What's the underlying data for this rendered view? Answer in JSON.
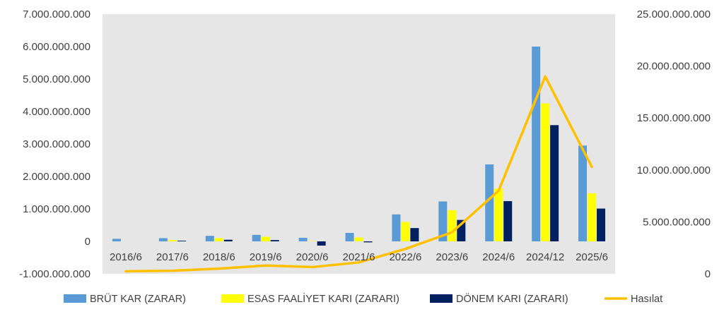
{
  "chart_data": {
    "type": "bar",
    "categories": [
      "2016/6",
      "2017/6",
      "2018/6",
      "2019/6",
      "2020/6",
      "2021/6",
      "2022/6",
      "2023/6",
      "2024/6",
      "2024/12",
      "2025/6"
    ],
    "series": [
      {
        "name": "BRÜT KAR (ZARAR)",
        "type": "bar",
        "axis": "left",
        "color": "#5B9BD5",
        "values": [
          80000000,
          100000000,
          170000000,
          200000000,
          110000000,
          260000000,
          830000000,
          1230000000,
          2370000000,
          6000000000,
          2950000000
        ]
      },
      {
        "name": "ESAS FAALİYET KARI (ZARARI)",
        "type": "bar",
        "axis": "left",
        "color": "#FFFF00",
        "values": [
          0,
          40000000,
          100000000,
          140000000,
          10000000,
          120000000,
          600000000,
          960000000,
          1630000000,
          4250000000,
          1480000000
        ]
      },
      {
        "name": "DÖNEM KARI (ZARARI)",
        "type": "bar",
        "axis": "left",
        "color": "#002060",
        "values": [
          0,
          20000000,
          50000000,
          40000000,
          -130000000,
          -30000000,
          410000000,
          660000000,
          1240000000,
          3580000000,
          1010000000
        ]
      },
      {
        "name": "Hasılat",
        "type": "line",
        "axis": "right",
        "color": "#FFC000",
        "values": [
          250000000,
          300000000,
          500000000,
          800000000,
          650000000,
          1100000000,
          2400000000,
          4000000000,
          8000000000,
          19000000000,
          10300000000
        ]
      }
    ],
    "left_axis": {
      "min": -1000000000,
      "max": 7000000000,
      "ticks": [
        -1000000000,
        0,
        1000000000,
        2000000000,
        3000000000,
        4000000000,
        5000000000,
        6000000000,
        7000000000
      ],
      "tick_labels": [
        "-1.000.000.000",
        "0",
        "1.000.000.000",
        "2.000.000.000",
        "3.000.000.000",
        "4.000.000.000",
        "5.000.000.000",
        "6.000.000.000",
        "7.000.000.000"
      ]
    },
    "right_axis": {
      "min": 0,
      "max": 25000000000,
      "ticks": [
        0,
        5000000000,
        10000000000,
        15000000000,
        20000000000,
        25000000000
      ],
      "tick_labels": [
        "0",
        "5.000.000.000",
        "10.000.000.000",
        "15.000.000.000",
        "20.000.000.000",
        "25.000.000.000"
      ]
    },
    "grid": false,
    "legend_position": "bottom"
  }
}
